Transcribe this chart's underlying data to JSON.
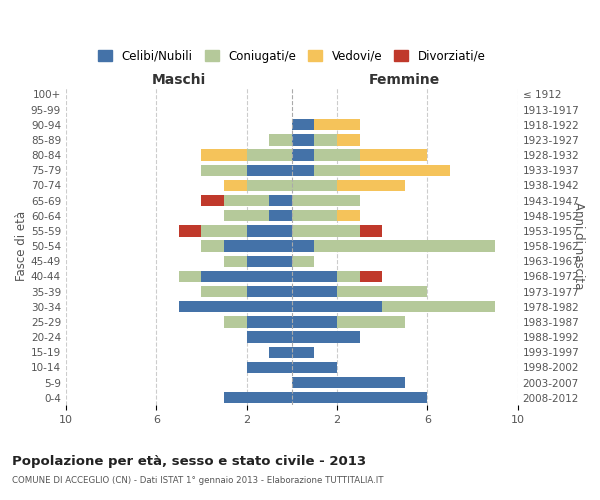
{
  "age_groups": [
    "100+",
    "95-99",
    "90-94",
    "85-89",
    "80-84",
    "75-79",
    "70-74",
    "65-69",
    "60-64",
    "55-59",
    "50-54",
    "45-49",
    "40-44",
    "35-39",
    "30-34",
    "25-29",
    "20-24",
    "15-19",
    "10-14",
    "5-9",
    "0-4"
  ],
  "birth_years": [
    "≤ 1912",
    "1913-1917",
    "1918-1922",
    "1923-1927",
    "1928-1932",
    "1933-1937",
    "1938-1942",
    "1943-1947",
    "1948-1952",
    "1953-1957",
    "1958-1962",
    "1963-1967",
    "1968-1972",
    "1973-1977",
    "1978-1982",
    "1983-1987",
    "1988-1992",
    "1993-1997",
    "1998-2002",
    "2003-2007",
    "2008-2012"
  ],
  "colors": {
    "celibi": "#4472a8",
    "coniugati": "#b5c99a",
    "vedovi": "#f5c35a",
    "divorziati": "#c0392b"
  },
  "maschi": {
    "celibi": [
      0,
      0,
      0,
      0,
      0,
      2,
      0,
      1,
      1,
      2,
      3,
      2,
      4,
      2,
      5,
      2,
      2,
      1,
      2,
      0,
      3
    ],
    "coniugati": [
      0,
      0,
      0,
      1,
      2,
      2,
      2,
      2,
      2,
      2,
      1,
      1,
      1,
      2,
      0,
      1,
      0,
      0,
      0,
      0,
      0
    ],
    "vedovi": [
      0,
      0,
      0,
      0,
      2,
      0,
      1,
      0,
      0,
      0,
      0,
      0,
      0,
      0,
      0,
      0,
      0,
      0,
      0,
      0,
      0
    ],
    "divorziati": [
      0,
      0,
      0,
      0,
      0,
      0,
      0,
      1,
      0,
      1,
      0,
      0,
      0,
      0,
      0,
      0,
      0,
      0,
      0,
      0,
      0
    ]
  },
  "femmine": {
    "celibi": [
      0,
      0,
      1,
      1,
      1,
      1,
      0,
      0,
      0,
      0,
      1,
      0,
      2,
      2,
      4,
      2,
      3,
      1,
      2,
      5,
      6
    ],
    "coniugati": [
      0,
      0,
      0,
      1,
      2,
      2,
      2,
      3,
      2,
      3,
      8,
      1,
      1,
      4,
      5,
      3,
      0,
      0,
      0,
      0,
      0
    ],
    "vedovi": [
      0,
      0,
      2,
      1,
      3,
      4,
      3,
      0,
      1,
      0,
      0,
      0,
      0,
      0,
      0,
      0,
      0,
      0,
      0,
      0,
      0
    ],
    "divorziati": [
      0,
      0,
      0,
      0,
      0,
      0,
      0,
      0,
      0,
      1,
      0,
      0,
      1,
      0,
      0,
      0,
      0,
      0,
      0,
      0,
      0
    ]
  },
  "title": "Popolazione per età, sesso e stato civile - 2013",
  "subtitle": "COMUNE DI ACCEGLIO (CN) - Dati ISTAT 1° gennaio 2013 - Elaborazione TUTTITALIA.IT",
  "xlabel_left": "Maschi",
  "xlabel_right": "Femmine",
  "ylabel_left": "Fasce di età",
  "ylabel_right": "Anni di nascita",
  "xlim": 10,
  "bg_color": "#ffffff",
  "grid_color": "#cccccc",
  "legend_labels": [
    "Celibi/Nubili",
    "Coniugati/e",
    "Vedovi/e",
    "Divorziati/e"
  ]
}
